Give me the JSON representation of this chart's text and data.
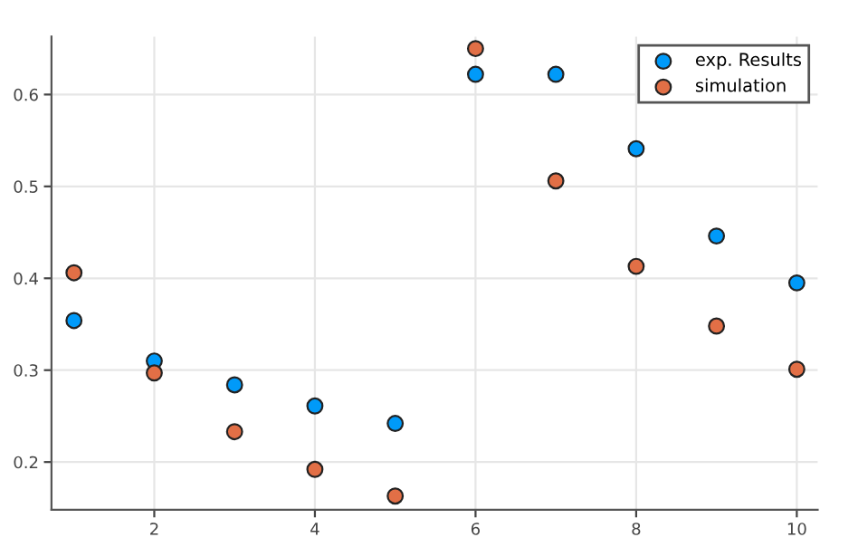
{
  "chart_data": {
    "type": "scatter",
    "x": [
      1,
      2,
      3,
      4,
      5,
      6,
      7,
      8,
      9,
      10
    ],
    "series": [
      {
        "name": "exp. Results",
        "color": "#009af9",
        "values": [
          0.354,
          0.31,
          0.284,
          0.261,
          0.242,
          0.622,
          0.622,
          0.541,
          0.446,
          0.395
        ]
      },
      {
        "name": "simulation",
        "color": "#e26f46",
        "values": [
          0.406,
          0.297,
          0.233,
          0.192,
          0.163,
          0.65,
          0.506,
          0.413,
          0.348,
          0.301
        ]
      }
    ],
    "xlim": [
      0.72,
      10.26
    ],
    "ylim": [
      0.148,
      0.663
    ],
    "xticks": [
      2,
      4,
      6,
      8,
      10
    ],
    "yticks": [
      0.2,
      0.3,
      0.4,
      0.5,
      0.6
    ],
    "grid": true,
    "legend": "top right",
    "marker": "circle"
  }
}
